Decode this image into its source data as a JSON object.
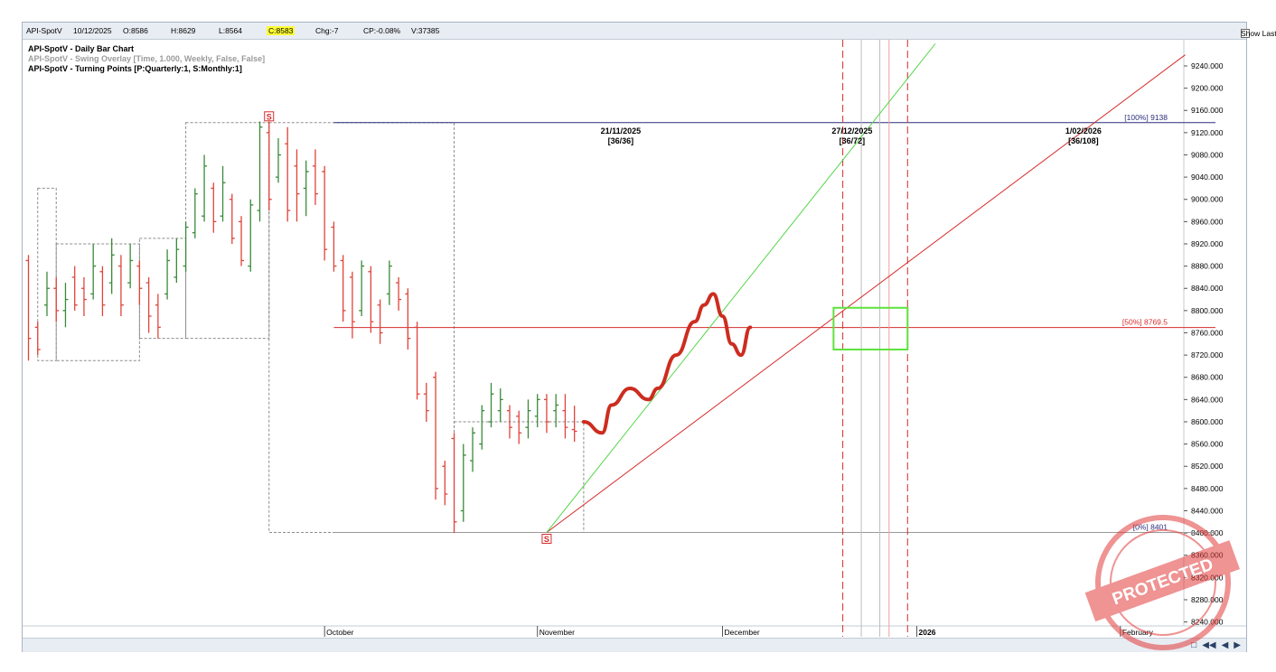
{
  "toolbar": {
    "symbol": "API-SpotV",
    "date": "10/12/2025",
    "open": "O:8586",
    "high": "H:8629",
    "low": "L:8564",
    "close": "C:8583",
    "change": "Chg:-7",
    "change_pct": "CP:-0.08%",
    "volume": "V:37385",
    "show_last_label": "Show Last"
  },
  "legend": {
    "line1": "API-SpotV - Daily Bar Chart",
    "line2": "API-SpotV - Swing Overlay [Time, 1.000, Weekly, False, False]",
    "line3": "API-SpotV - Turning Points [P:Quarterly:1, S:Monthly:1]"
  },
  "colors": {
    "up_bar": "#3a8a3a",
    "down_bar": "#e0443a",
    "neutral_bar": "#000000",
    "level_100": "#2b2e7a",
    "level_50": "#d62c2c",
    "fan_green": "#53d64a",
    "projection": "#cc2d1f",
    "target_box": "#5ee23c"
  },
  "chart_data": {
    "type": "bar",
    "title": "API-SpotV - Daily Bar Chart",
    "ylim": [
      8220,
      9280
    ],
    "yticks": [
      "9240.000",
      "9200.000",
      "9160.000",
      "9120.000",
      "9080.000",
      "9040.000",
      "9000.000",
      "8960.000",
      "8920.000",
      "8880.000",
      "8840.000",
      "8800.000",
      "8760.000",
      "8720.000",
      "8680.000",
      "8640.000",
      "8600.000",
      "8560.000",
      "8520.000",
      "8480.000",
      "8440.000",
      "8400.000",
      "8360.000",
      "8320.000",
      "8280.000",
      "8240.000"
    ],
    "x_labels": [
      {
        "text": "October",
        "trading_day": 32
      },
      {
        "text": "November",
        "trading_day": 55
      },
      {
        "text": "December",
        "trading_day": 75
      },
      {
        "text": "2026",
        "trading_day": 96,
        "bold": true
      },
      {
        "text": "February",
        "trading_day": 118
      }
    ],
    "bars": [
      [
        8900,
        8710,
        8890,
        8750
      ],
      [
        8780,
        8720,
        8770,
        8730
      ],
      [
        8870,
        8790,
        8810,
        8840
      ],
      [
        8860,
        8780,
        8840,
        8800
      ],
      [
        8850,
        8770,
        8800,
        8820
      ],
      [
        8880,
        8800,
        8860,
        8810
      ],
      [
        8860,
        8790,
        8840,
        8820
      ],
      [
        8920,
        8820,
        8830,
        8880
      ],
      [
        8880,
        8790,
        8870,
        8810
      ],
      [
        8930,
        8830,
        8850,
        8900
      ],
      [
        8900,
        8790,
        8880,
        8810
      ],
      [
        8920,
        8840,
        8850,
        8890
      ],
      [
        8890,
        8810,
        8880,
        8840
      ],
      [
        8860,
        8760,
        8850,
        8790
      ],
      [
        8830,
        8750,
        8810,
        8770
      ],
      [
        8910,
        8820,
        8830,
        8890
      ],
      [
        8930,
        8850,
        8860,
        8910
      ],
      [
        8960,
        8870,
        8880,
        8950
      ],
      [
        9020,
        8930,
        8940,
        9010
      ],
      [
        9080,
        8960,
        8970,
        9060
      ],
      [
        9030,
        8940,
        9020,
        8960
      ],
      [
        9060,
        8960,
        8970,
        9030
      ],
      [
        9010,
        8920,
        9000,
        8930
      ],
      [
        8970,
        8880,
        8960,
        8890
      ],
      [
        9000,
        8870,
        8880,
        8990
      ],
      [
        9140,
        8960,
        8980,
        9130
      ],
      [
        9140,
        8980,
        9120,
        9000
      ],
      [
        9110,
        9030,
        9040,
        9080
      ],
      [
        9130,
        8960,
        9100,
        8980
      ],
      [
        9090,
        8960,
        9060,
        9010
      ],
      [
        9070,
        8970,
        9020,
        9050
      ],
      [
        9090,
        8990,
        9060,
        9010
      ],
      [
        9060,
        8890,
        9050,
        8910
      ],
      [
        8960,
        8870,
        8950,
        8880
      ],
      [
        8900,
        8780,
        8890,
        8800
      ],
      [
        8870,
        8750,
        8860,
        8780
      ],
      [
        8890,
        8790,
        8800,
        8880
      ],
      [
        8880,
        8760,
        8870,
        8780
      ],
      [
        8820,
        8740,
        8810,
        8760
      ],
      [
        8890,
        8810,
        8830,
        8880
      ],
      [
        8860,
        8800,
        8850,
        8820
      ],
      [
        8840,
        8730,
        8830,
        8750
      ],
      [
        8780,
        8640,
        8770,
        8650
      ],
      [
        8670,
        8600,
        8650,
        8620
      ],
      [
        8690,
        8460,
        8680,
        8480
      ],
      [
        8530,
        8450,
        8520,
        8470
      ],
      [
        8580,
        8400,
        8570,
        8420
      ],
      [
        8560,
        8420,
        8440,
        8540
      ],
      [
        8590,
        8510,
        8530,
        8580
      ],
      [
        8630,
        8550,
        8560,
        8620
      ],
      [
        8670,
        8590,
        8600,
        8650
      ],
      [
        8660,
        8600,
        8620,
        8640
      ],
      [
        8630,
        8570,
        8620,
        8590
      ],
      [
        8620,
        8560,
        8610,
        8580
      ],
      [
        8640,
        8570,
        8590,
        8620
      ],
      [
        8650,
        8590,
        8610,
        8640
      ],
      [
        8650,
        8580,
        8640,
        8600
      ],
      [
        8650,
        8590,
        8620,
        8630
      ],
      [
        8650,
        8570,
        8620,
        8590
      ],
      [
        8629,
        8564,
        8586,
        8583
      ]
    ],
    "series": [
      {
        "name": "Turning point S high",
        "values": [
          {
            "trading_day": 26,
            "price": 9138
          }
        ]
      },
      {
        "name": "Turning point S low",
        "values": [
          {
            "trading_day": 56,
            "price": 8401
          }
        ]
      }
    ],
    "levels": [
      {
        "label": "[100%] 9138",
        "price": 9138
      },
      {
        "label": "[50%] 8769.5",
        "price": 8769.5
      },
      {
        "label": "[0%] 8401",
        "price": 8401
      }
    ],
    "time_targets": [
      {
        "date": "21/11/2025",
        "ratio": "[36/36]",
        "trading_day": 64
      },
      {
        "date": "27/12/2025",
        "ratio": "[36/72]",
        "trading_day": 89
      },
      {
        "date": "1/02/2026",
        "ratio": "[36/108]",
        "trading_day": 114
      }
    ],
    "swing_boxes": [
      {
        "t0": 1,
        "t1": 3,
        "p0": 8710,
        "p1": 9020
      },
      {
        "t0": 3,
        "t1": 12,
        "p0": 8710,
        "p1": 8920
      },
      {
        "t0": 12,
        "t1": 17,
        "p0": 8750,
        "p1": 8930
      },
      {
        "t0": 17,
        "t1": 26,
        "p0": 8750,
        "p1": 9138
      },
      {
        "t0": 26,
        "t1": 46,
        "p0": 8401,
        "p1": 9138
      },
      {
        "t0": 46,
        "t1": 60,
        "p0": 8401,
        "p1": 8600
      }
    ],
    "trend_lines": [
      {
        "name": "red trend",
        "from": {
          "trading_day": 56,
          "price": 8401
        },
        "to": {
          "trading_day": 125,
          "price": 9260
        },
        "color": "#d62c2c"
      },
      {
        "name": "green fan",
        "from": {
          "trading_day": 56,
          "price": 8401
        },
        "to": {
          "trading_day": 98,
          "price": 9280
        },
        "color": "#53d64a"
      }
    ],
    "vertical_markers": [
      {
        "trading_day": 88,
        "style": "dashed",
        "color": "#d62c2c"
      },
      {
        "trading_day": 90,
        "style": "solid",
        "color": "#bdbdbd"
      },
      {
        "trading_day": 92,
        "style": "solid",
        "color": "#bdbdbd"
      },
      {
        "trading_day": 93,
        "style": "solid",
        "color": "#f0a0a0"
      },
      {
        "trading_day": 95,
        "style": "dashed",
        "color": "#d62c2c"
      }
    ],
    "projection_path": [
      [
        60,
        8600
      ],
      [
        62,
        8580
      ],
      [
        63,
        8630
      ],
      [
        65,
        8660
      ],
      [
        67,
        8640
      ],
      [
        68,
        8660
      ],
      [
        70,
        8720
      ],
      [
        72,
        8780
      ],
      [
        73,
        8810
      ],
      [
        74,
        8830
      ],
      [
        75,
        8790
      ],
      [
        76,
        8740
      ],
      [
        77,
        8720
      ],
      [
        78,
        8770
      ]
    ],
    "target_box": {
      "t0": 87,
      "t1": 95,
      "p0": 8730,
      "p1": 8805
    },
    "legend_position": "top-left"
  }
}
